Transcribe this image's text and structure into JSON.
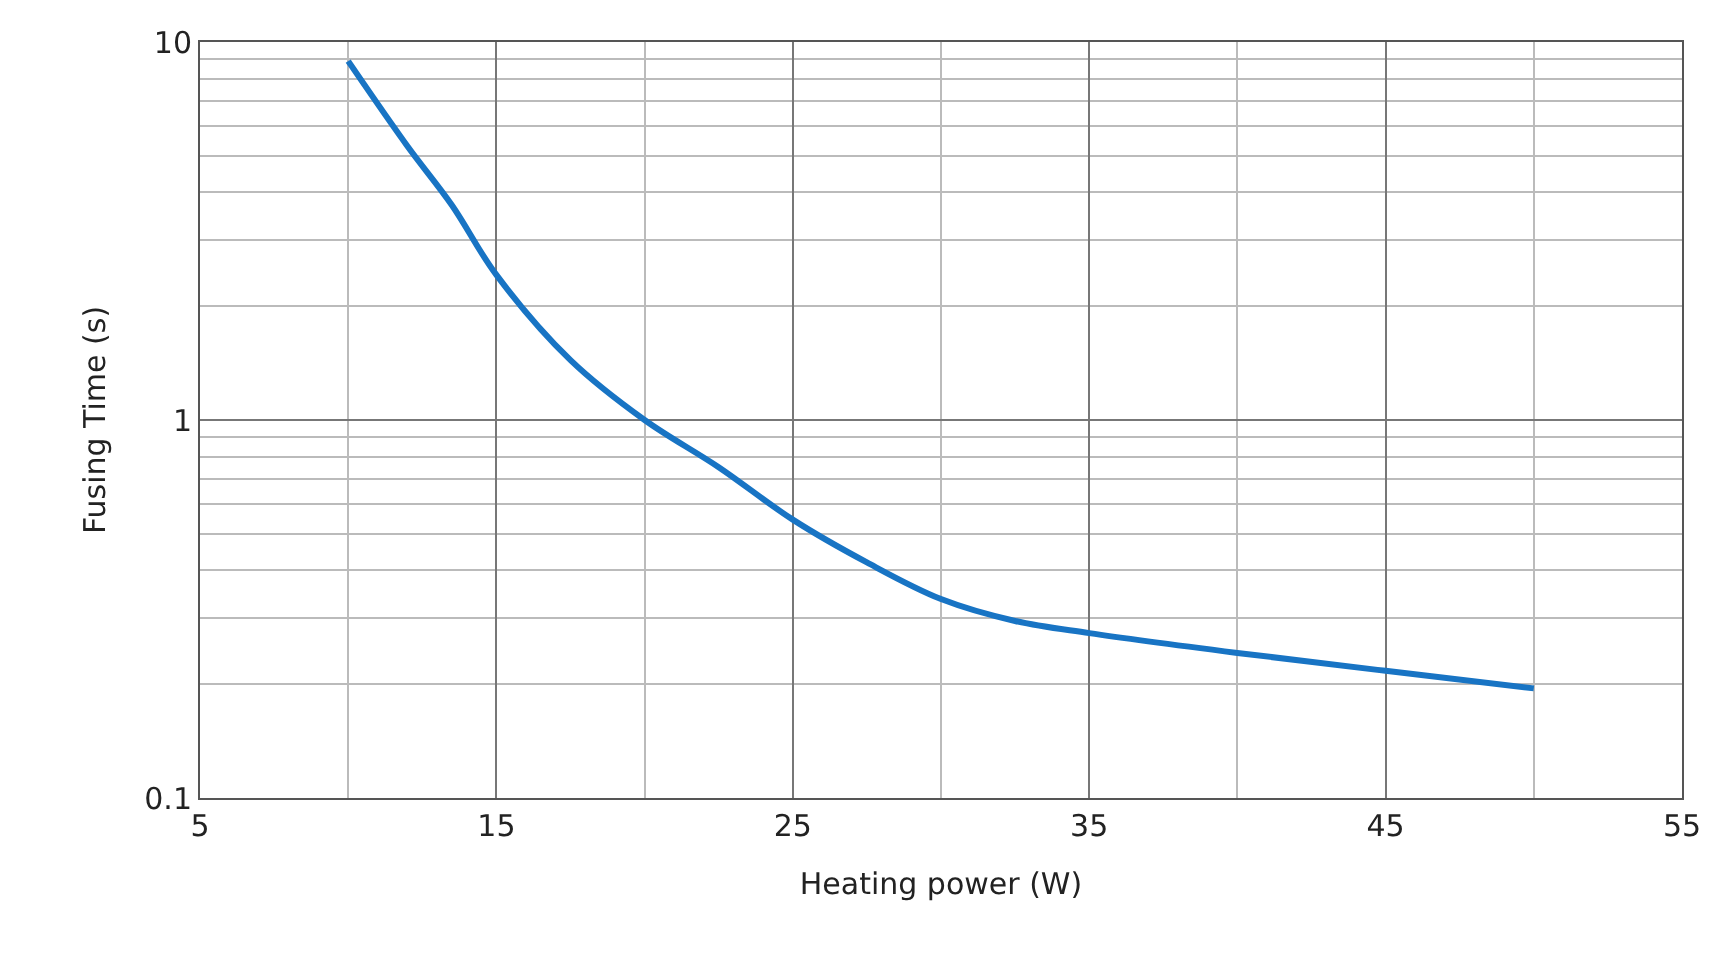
{
  "chart_data": {
    "type": "line",
    "xlabel": "Heating power (W)",
    "ylabel": "Fusing Time (s)",
    "x": [
      10,
      12,
      13.5,
      15,
      17.5,
      20,
      22.5,
      25,
      27.5,
      30,
      32.5,
      35,
      40,
      45,
      50
    ],
    "series": [
      {
        "color": "#1874c4",
        "values": [
          8.9,
          5.3,
          3.7,
          2.42,
          1.44,
          1.0,
          0.75,
          0.545,
          0.42,
          0.336,
          0.294,
          0.273,
          0.242,
          0.217,
          0.195
        ]
      }
    ],
    "xlim": [
      5,
      55
    ],
    "xticks": [
      5,
      15,
      25,
      35,
      45,
      55
    ],
    "ylim": [
      0.1,
      10
    ],
    "yticks": [
      0.1,
      1,
      10
    ],
    "log": "y",
    "grid": true,
    "marker": "none",
    "line_style": "solid"
  }
}
